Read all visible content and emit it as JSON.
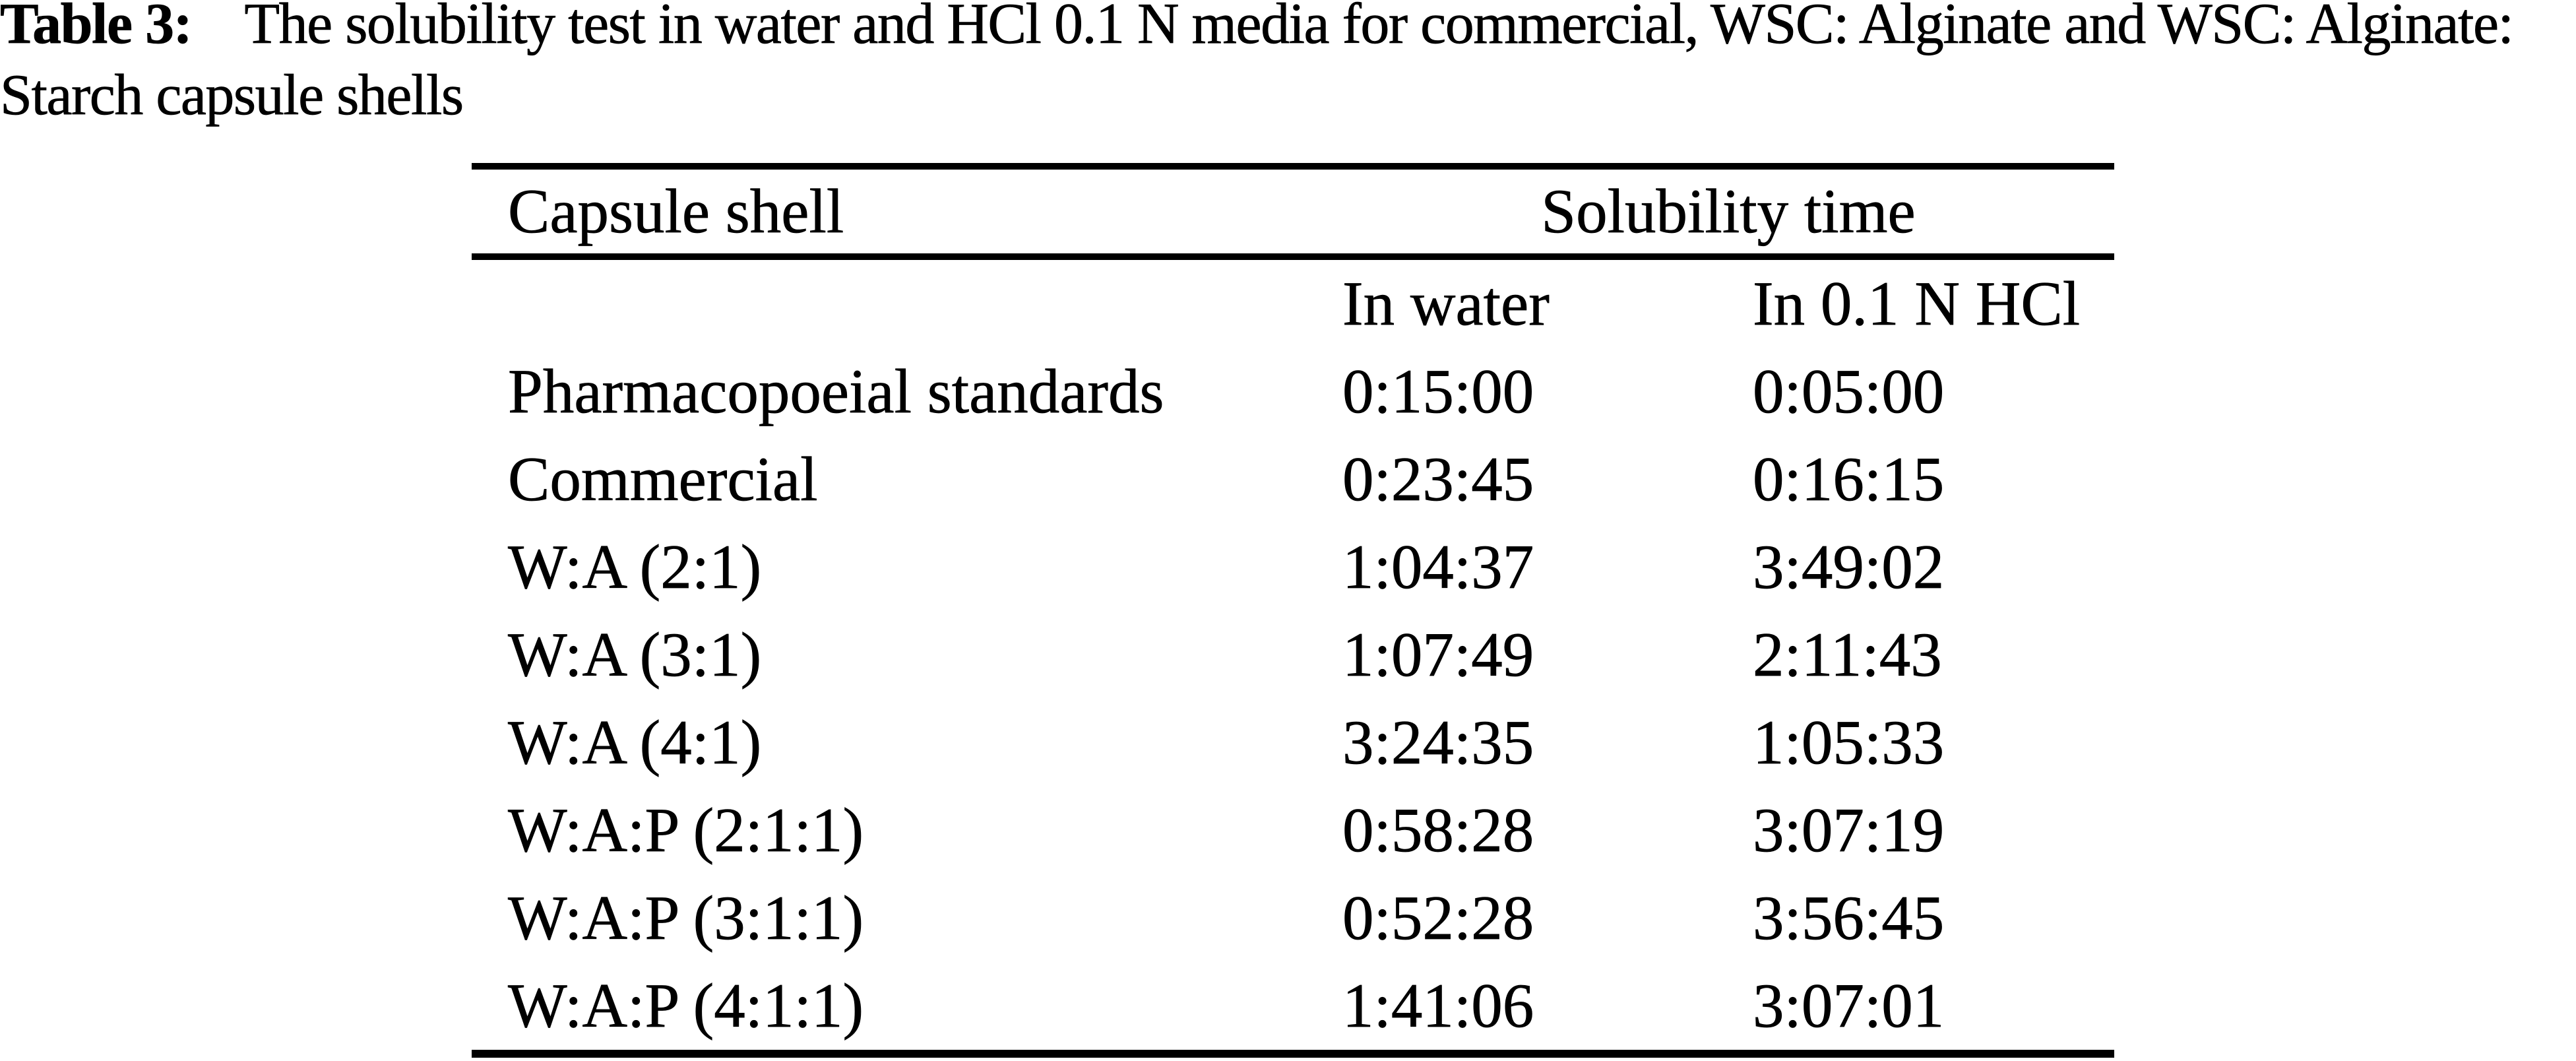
{
  "caption": {
    "label": "Table 3:",
    "line1": "The solubility test in water and HCl 0.1 N media for commercial, WSC: Alginate and WSC: Alginate:",
    "line2": "Starch capsule shells"
  },
  "table": {
    "col1_header": "Capsule shell",
    "group_header": "Solubility time",
    "sub_headers": [
      "In water",
      "In 0.1 N HCl"
    ],
    "rows": [
      {
        "shell": "Pharmacopoeial standards",
        "in_water": "0:15:00",
        "in_hcl": "0:05:00"
      },
      {
        "shell": "Commercial",
        "in_water": "0:23:45",
        "in_hcl": "0:16:15"
      },
      {
        "shell": "W:A (2:1)",
        "in_water": "1:04:37",
        "in_hcl": "3:49:02"
      },
      {
        "shell": "W:A (3:1)",
        "in_water": "1:07:49",
        "in_hcl": "2:11:43"
      },
      {
        "shell": "W:A (4:1)",
        "in_water": "3:24:35",
        "in_hcl": "1:05:33"
      },
      {
        "shell": "W:A:P (2:1:1)",
        "in_water": "0:58:28",
        "in_hcl": "3:07:19"
      },
      {
        "shell": "W:A:P (3:1:1)",
        "in_water": "0:52:28",
        "in_hcl": "3:56:45"
      },
      {
        "shell": "W:A:P (4:1:1)",
        "in_water": "1:41:06",
        "in_hcl": "3:07:01"
      }
    ]
  },
  "colors": {
    "text": "#000000",
    "background": "#ffffff",
    "rule": "#000000"
  }
}
